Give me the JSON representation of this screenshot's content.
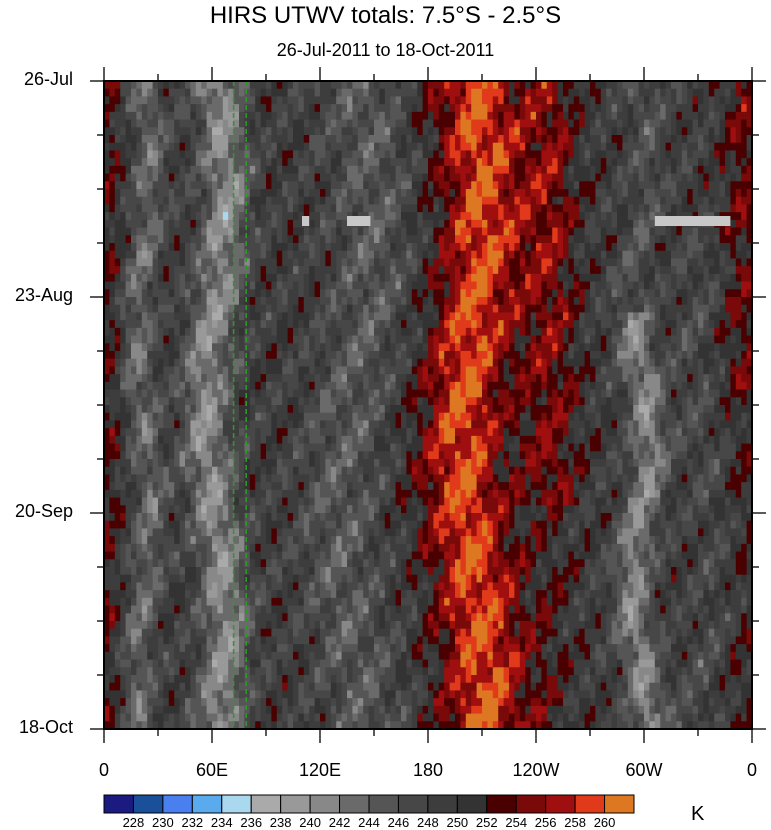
{
  "chart_data": {
    "type": "heatmap",
    "title": "HIRS UTWV totals: 7.5°S - 2.5°S",
    "subtitle": "26-Jul-2011 to 18-Oct-2011",
    "xlabel": "",
    "ylabel": "",
    "x_ticks": [
      "0",
      "60E",
      "120E",
      "180",
      "120W",
      "60W",
      "0"
    ],
    "y_ticks": [
      "26-Jul",
      "23-Aug",
      "20-Sep",
      "18-Oct"
    ],
    "xlim": [
      0,
      360
    ],
    "y_reversed": true,
    "reference_lines": [
      {
        "style": "dashed",
        "color": "#2a9a2a",
        "x_deg": 72
      },
      {
        "style": "dashed",
        "color": "#2a9a2a",
        "x_deg": 79
      }
    ],
    "colorbar": {
      "levels": [
        "228",
        "230",
        "232",
        "234",
        "236",
        "238",
        "240",
        "242",
        "244",
        "246",
        "248",
        "250",
        "252",
        "254",
        "256",
        "258",
        "260"
      ],
      "colors": [
        "#1a1a80",
        "#1a4f9a",
        "#4a7fef",
        "#5aaaee",
        "#aad8ee",
        "#aaaaaa",
        "#999999",
        "#888888",
        "#6a6a6a",
        "#555555",
        "#474747",
        "#3d3d3d",
        "#333333",
        "#4a0000",
        "#7a0a0a",
        "#a00f0f",
        "#e03a1a",
        "#dd7722"
      ],
      "units": "K"
    },
    "missing_color": "#c8c8c8"
  }
}
